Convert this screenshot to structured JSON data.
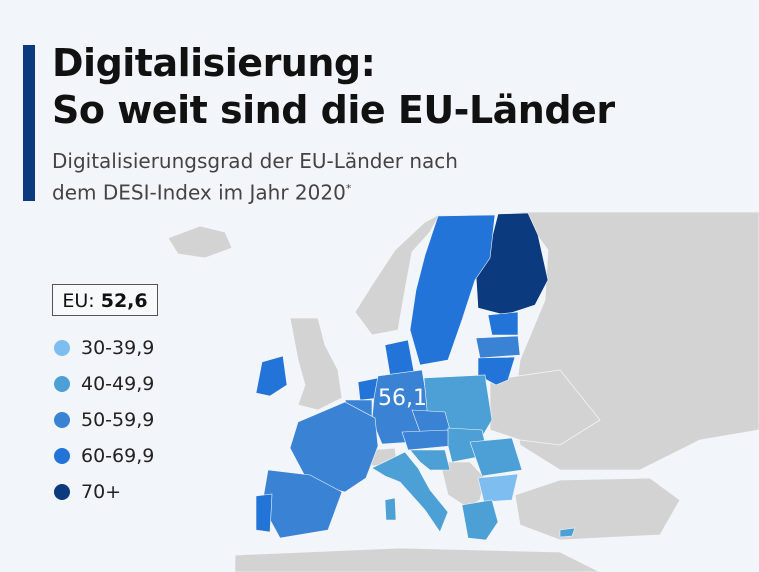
{
  "header": {
    "title_line1": "Digitalisierung:",
    "title_line2": "So weit sind die EU-Länder",
    "subtitle_line1": "Digitalisierungsgrad der EU-Länder nach",
    "subtitle_line2": "dem DESI-Index im Jahr 2020",
    "subtitle_footnote": "*"
  },
  "eu_average": {
    "label": "EU:",
    "value": "52,6"
  },
  "map_label": "56,1",
  "legend": [
    {
      "label": "30-39,9",
      "color": "#7dbdf0"
    },
    {
      "label": "40-49,9",
      "color": "#4da0d6"
    },
    {
      "label": "50-59,9",
      "color": "#3a82d4"
    },
    {
      "label": "60-69,9",
      "color": "#2374d9"
    },
    {
      "label": "70+",
      "color": "#0b3a7e"
    }
  ],
  "colors": {
    "accent": "#0b3a7e",
    "non_eu": "#d3d3d3",
    "background": "#f2f6fa"
  }
}
